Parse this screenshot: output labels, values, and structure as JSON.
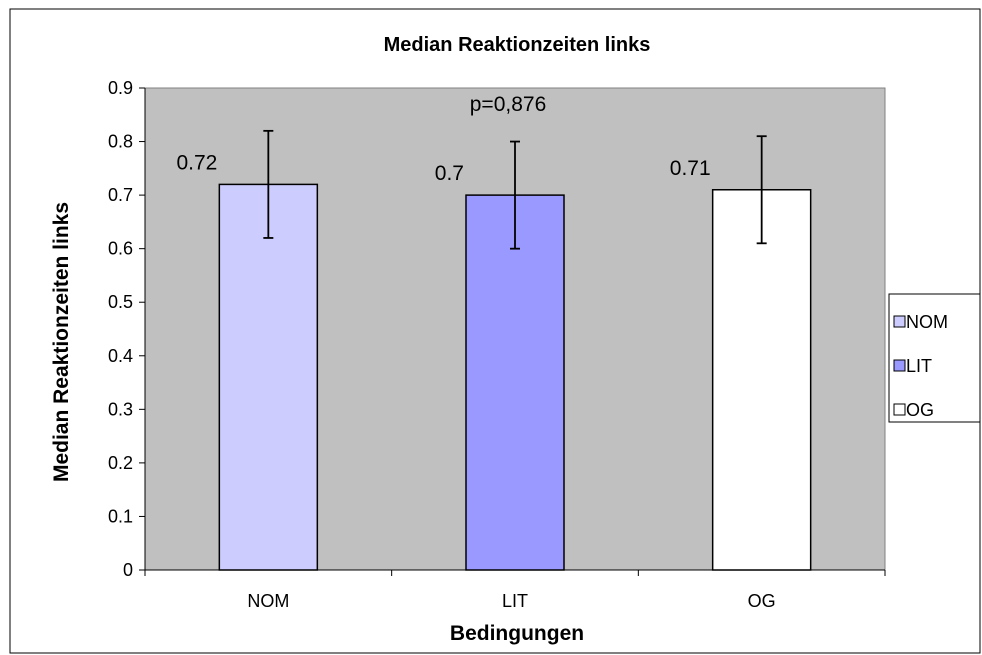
{
  "chart_data": {
    "type": "bar",
    "title": "Median Reaktionzeiten links",
    "xlabel": "Bedingungen",
    "ylabel": "Median Reaktionzeiten links",
    "categories": [
      "NOM",
      "LIT",
      "OG"
    ],
    "values": [
      0.72,
      0.7,
      0.71
    ],
    "value_labels": [
      "0.72",
      "0.7",
      "0.71"
    ],
    "errors": [
      0.1,
      0.1,
      0.1
    ],
    "colors": [
      "#ccccff",
      "#9999ff",
      "#ffffff"
    ],
    "ylim": [
      0,
      0.9
    ],
    "yticks": [
      "0",
      "0.1",
      "0.2",
      "0.3",
      "0.4",
      "0.5",
      "0.6",
      "0.7",
      "0.8",
      "0.9"
    ],
    "annotation": "p=0,876",
    "plot_background": "#c0c0c0",
    "grid": false,
    "legend": {
      "position": "right",
      "entries": [
        "NOM",
        "LIT",
        "OG"
      ]
    }
  }
}
